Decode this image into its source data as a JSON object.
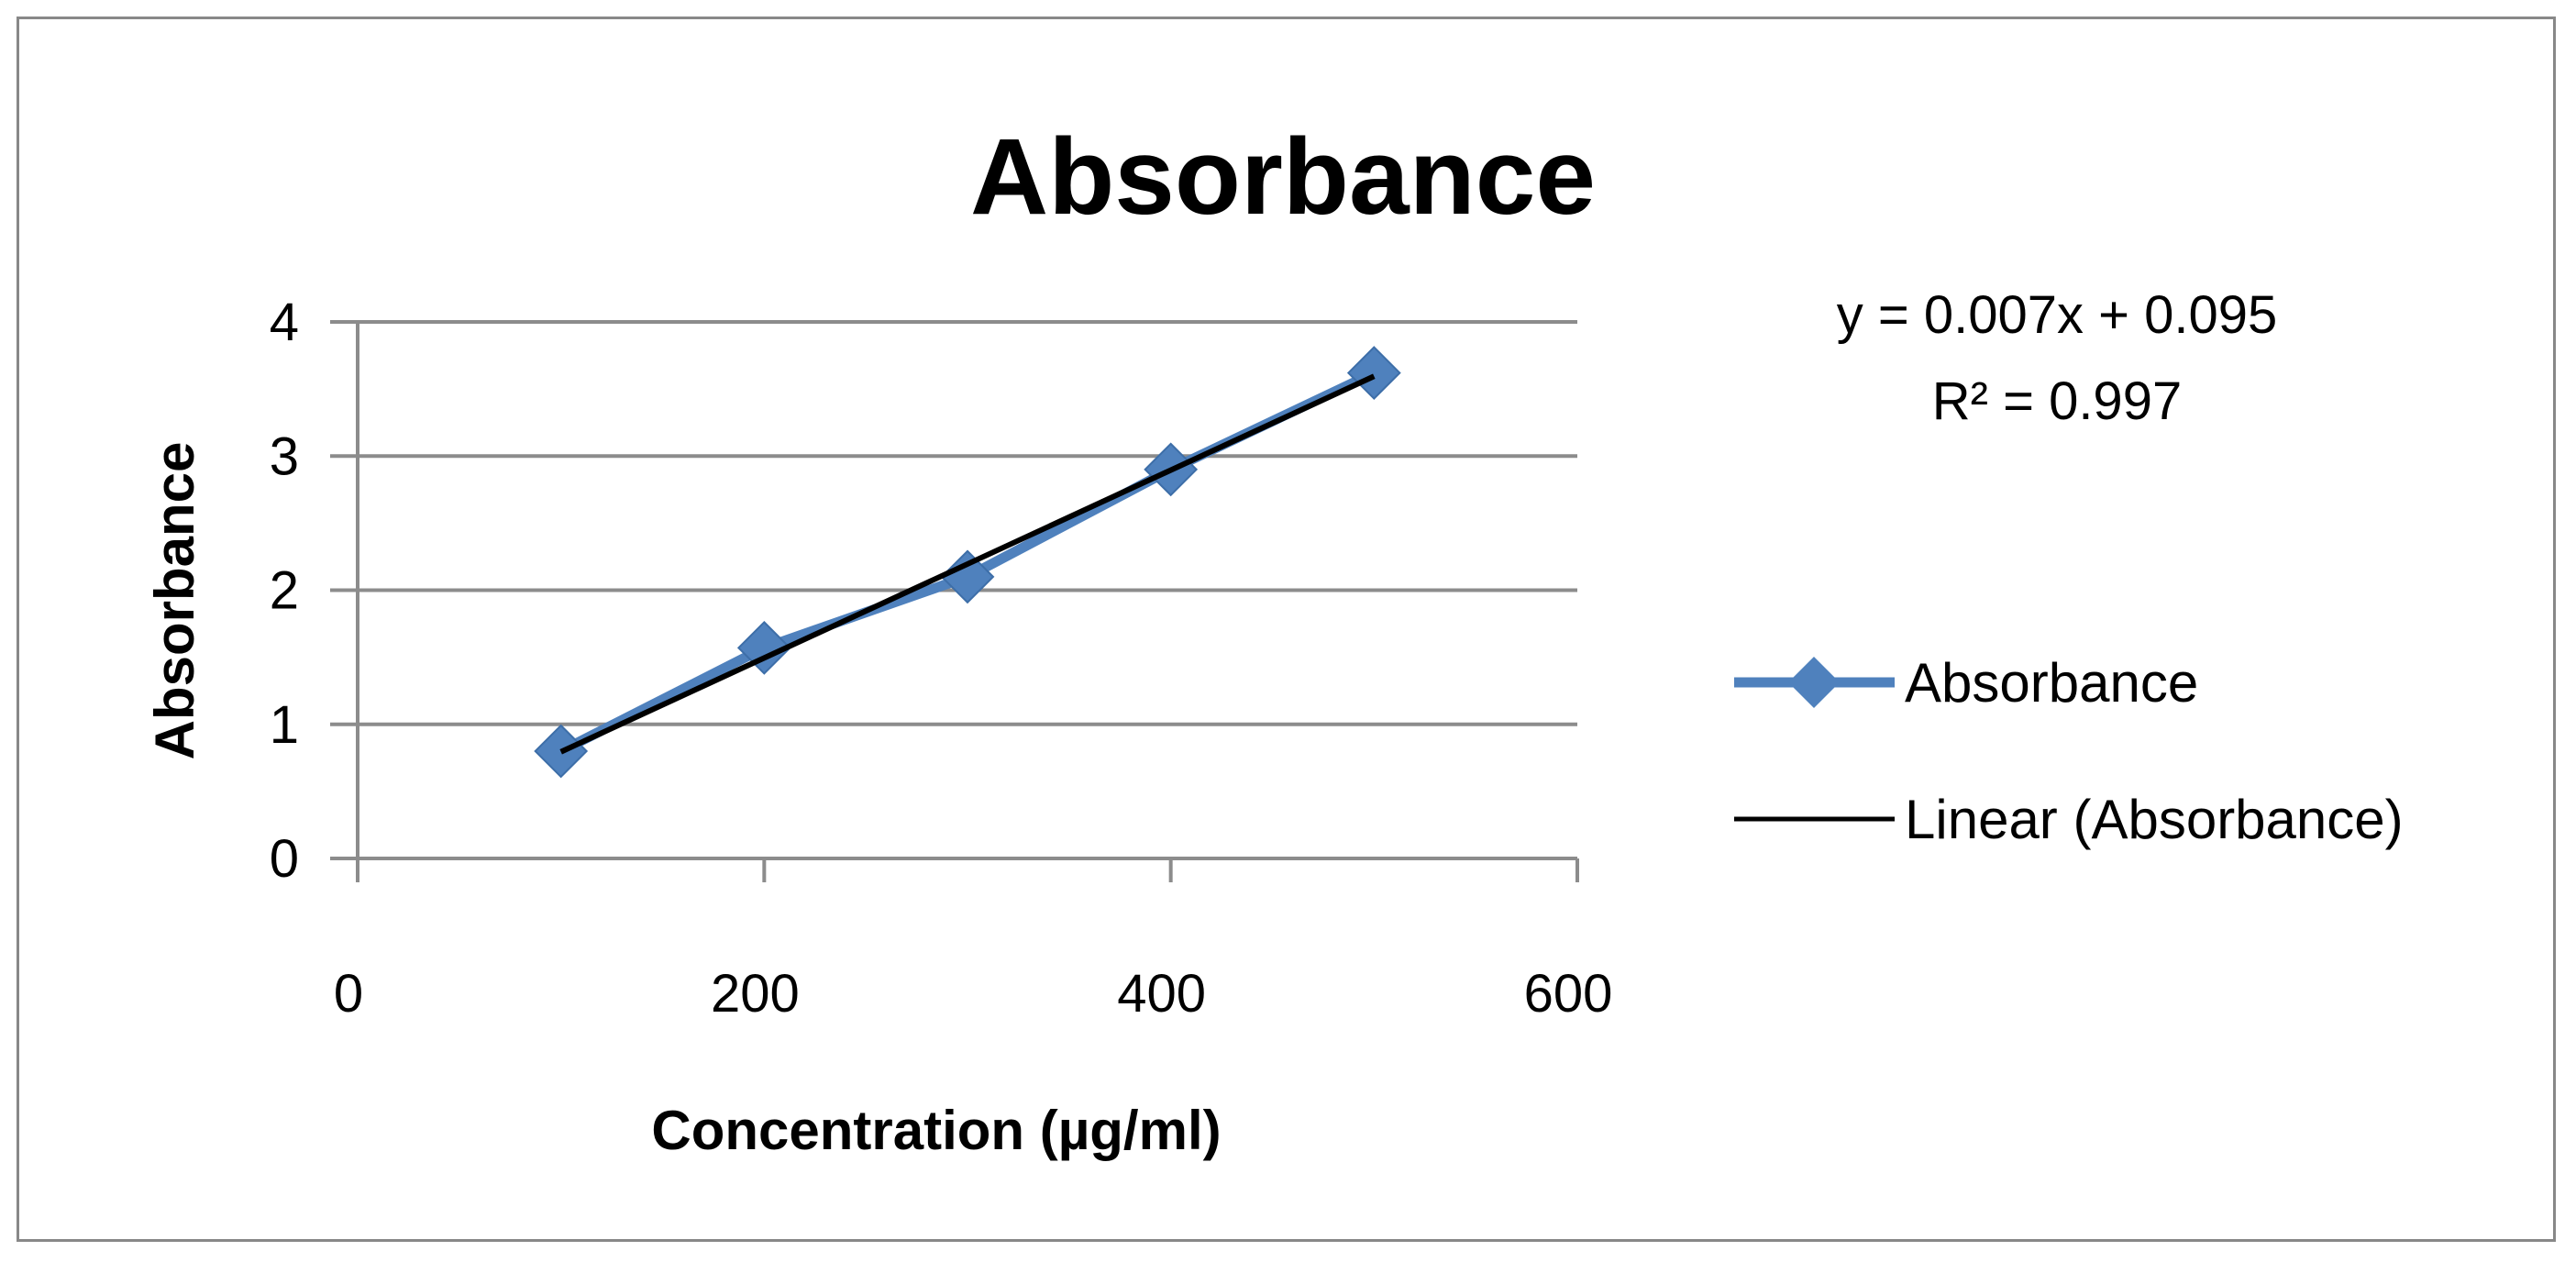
{
  "chart_data": {
    "type": "scatter",
    "title": "Absorbance",
    "xlabel": "Concentration  (µg/ml)",
    "ylabel": "Absorbance",
    "xlim": [
      0,
      600
    ],
    "ylim": [
      0,
      4
    ],
    "x_ticks": [
      "0",
      "200",
      "400",
      "600"
    ],
    "y_ticks": [
      "0",
      "1",
      "2",
      "3",
      "4"
    ],
    "grid": "horizontal major gridlines",
    "legend_position": "right",
    "series": [
      {
        "name": "Absorbance",
        "color": "#4F81BD",
        "marker": "diamond",
        "line": true,
        "x": [
          100,
          200,
          300,
          400,
          500
        ],
        "y": [
          0.8,
          1.57,
          2.1,
          2.9,
          3.62
        ]
      }
    ],
    "trendline": {
      "name": "Linear (Absorbance)",
      "color": "#000000",
      "slope": 0.007,
      "intercept": 0.095,
      "x_range": [
        100,
        500
      ],
      "equation": "y = 0.007x + 0.095",
      "r_squared": "R² = 0.997"
    }
  }
}
